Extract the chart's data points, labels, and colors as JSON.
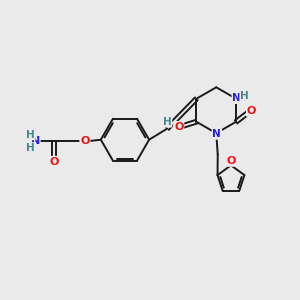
{
  "background_color": "#EAEAEA",
  "bond_color": "#1A1A1A",
  "atom_colors": {
    "O": "#EE1111",
    "N": "#2222DD",
    "H": "#4A8888",
    "C": "#1A1A1A"
  },
  "font_size": 7.5,
  "figsize": [
    3.0,
    3.0
  ],
  "dpi": 100
}
